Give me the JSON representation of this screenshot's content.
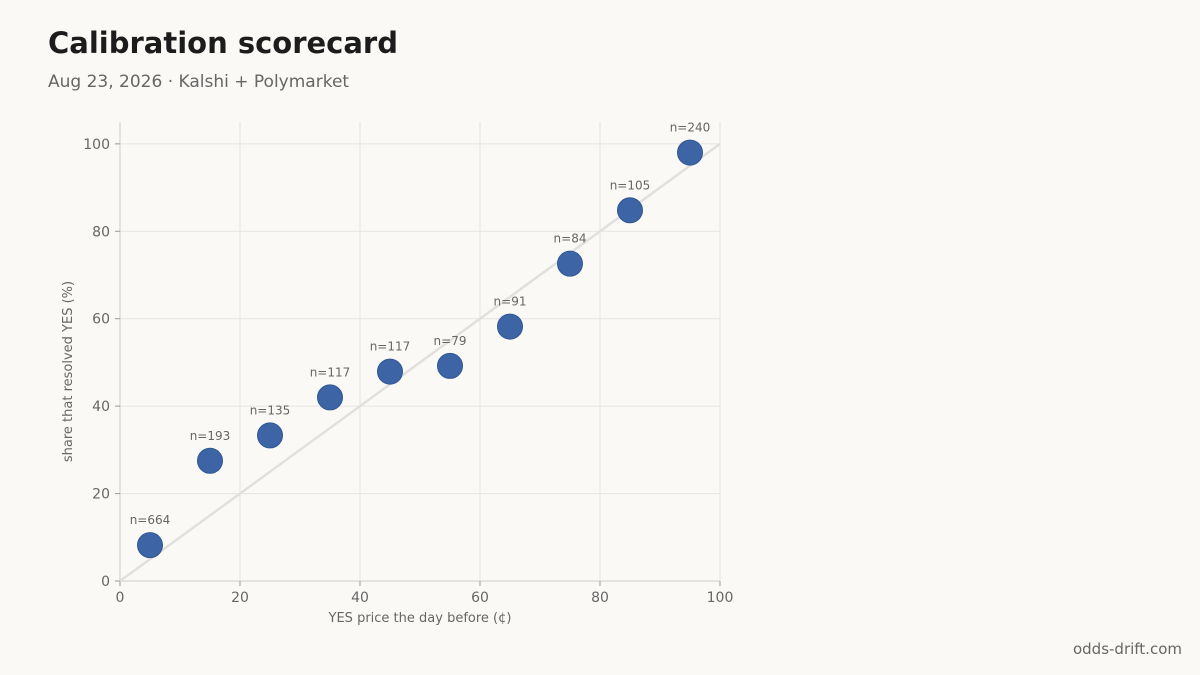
{
  "header": {
    "title": "Calibration scorecard",
    "subtitle": "Aug 23, 2026 · Kalshi + Polymarket"
  },
  "footer": {
    "source": "odds-drift.com"
  },
  "chart_data": {
    "type": "scatter",
    "title": "Calibration scorecard",
    "xlabel": "YES price the day before (¢)",
    "ylabel": "share that resolved YES (%)",
    "xlim": [
      0,
      100
    ],
    "ylim": [
      0,
      105
    ],
    "xticks": [
      0,
      20,
      40,
      60,
      80,
      100
    ],
    "yticks": [
      0,
      20,
      40,
      60,
      80,
      100
    ],
    "grid": true,
    "reference_line": {
      "from": [
        0,
        0
      ],
      "to": [
        100,
        100
      ],
      "color": "#e2e0dc"
    },
    "point_color": "#3d65a6",
    "x": [
      5,
      15,
      25,
      35,
      45,
      55,
      65,
      75,
      85,
      95
    ],
    "y": [
      8.2,
      27.5,
      33.3,
      42.0,
      47.9,
      49.2,
      58.2,
      72.6,
      84.8,
      98.0
    ],
    "labels": [
      "n=664",
      "n=193",
      "n=135",
      "n=117",
      "n=117",
      "n=79",
      "n=91",
      "n=84",
      "n=105",
      "n=240"
    ]
  }
}
